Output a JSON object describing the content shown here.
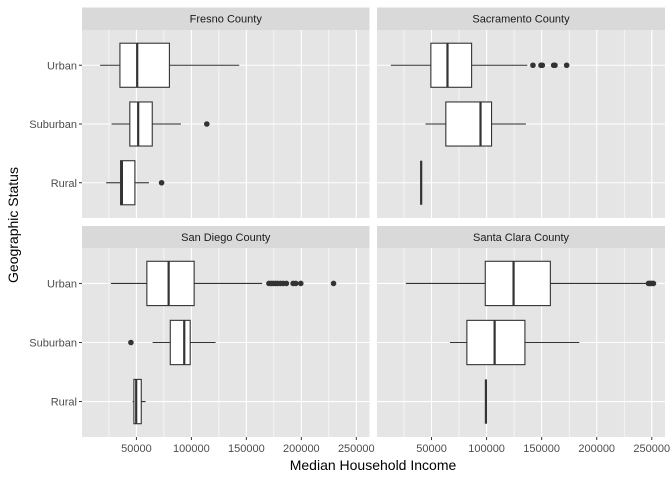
{
  "chart_data": {
    "type": "boxplot",
    "orientation": "horizontal",
    "xlabel": "Median Household Income",
    "ylabel": "Geographic Status",
    "categories": [
      "Rural",
      "Suburban",
      "Urban"
    ],
    "xlim": [
      500,
      262000
    ],
    "xticks": [
      50000,
      100000,
      150000,
      200000,
      250000
    ],
    "xtick_labels": [
      "50000",
      "100000",
      "150000",
      "200000",
      "250000"
    ],
    "grid": true,
    "colors": {
      "panel_bg": "#e5e5e5",
      "strip_bg": "#d9d9d9",
      "grid": "#ffffff",
      "box_fill": "#ffffff",
      "box_line": "#333333"
    },
    "facets": [
      {
        "title": "Fresno County",
        "boxes": {
          "Urban": {
            "min": 17000,
            "q1": 35000,
            "median": 50700,
            "q3": 80000,
            "max": 143500,
            "outliers": []
          },
          "Suburban": {
            "min": 27400,
            "q1": 44000,
            "median": 51600,
            "q3": 64400,
            "max": 90500,
            "outliers": [
              114000
            ]
          },
          "Rural": {
            "min": 22500,
            "q1": 35600,
            "median": 36800,
            "q3": 48600,
            "max": 61400,
            "outliers": [
              72900
            ]
          }
        }
      },
      {
        "title": "Sacramento County",
        "boxes": {
          "Urban": {
            "min": 13000,
            "q1": 49400,
            "median": 64500,
            "q3": 86400,
            "max": 137000,
            "outliers": [
              142100,
              149400,
              150600,
              160900,
              162100,
              172700
            ]
          },
          "Suburban": {
            "min": 44500,
            "q1": 63000,
            "median": 94500,
            "q3": 104500,
            "max": 135700,
            "outliers": []
          },
          "Rural": {
            "min": 40600,
            "q1": 40600,
            "median": 40600,
            "q3": 40600,
            "max": 40600,
            "outliers": []
          }
        }
      },
      {
        "title": "San Diego County",
        "boxes": {
          "Urban": {
            "min": 26800,
            "q1": 59500,
            "median": 79300,
            "q3": 102500,
            "max": 164400,
            "outliers": [
              170500,
              172500,
              174500,
              176500,
              178500,
              181000,
              183500,
              186400,
              192500,
              195000,
              199500,
              229300
            ]
          },
          "Suburban": {
            "min": 64700,
            "q1": 80800,
            "median": 93500,
            "q3": 98900,
            "max": 122000,
            "outliers": [
              45000
            ]
          },
          "Rural": {
            "min": 46500,
            "q1": 47700,
            "median": 49800,
            "q3": 54400,
            "max": 58300,
            "outliers": []
          }
        }
      },
      {
        "title": "Santa Clara County",
        "boxes": {
          "Urban": {
            "min": 26700,
            "q1": 98800,
            "median": 124500,
            "q3": 157900,
            "max": 245500,
            "outliers": [
              247000,
              248500,
              250000,
              251500
            ]
          },
          "Suburban": {
            "min": 66700,
            "q1": 82100,
            "median": 107300,
            "q3": 134800,
            "max": 184200,
            "outliers": []
          },
          "Rural": {
            "min": 99400,
            "q1": 99400,
            "median": 99400,
            "q3": 99400,
            "max": 99400,
            "outliers": []
          }
        }
      }
    ]
  }
}
